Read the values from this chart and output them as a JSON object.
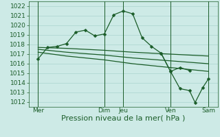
{
  "bg_color": "#cdeae6",
  "grid_color": "#aad4ce",
  "line_color": "#1a5c28",
  "xlabel": "Pression niveau de la mer( hPa )",
  "xlabel_fontsize": 8,
  "tick_fontsize": 6.5,
  "ylim": [
    1011.5,
    1022.5
  ],
  "yticks": [
    1012,
    1013,
    1014,
    1015,
    1016,
    1017,
    1018,
    1019,
    1020,
    1021,
    1022
  ],
  "xlim": [
    0,
    10.0
  ],
  "day_labels": [
    "Mer",
    "Dim",
    "Jeu",
    "Ven",
    "Sam"
  ],
  "day_positions": [
    0.5,
    4.0,
    5.0,
    7.5,
    9.5
  ],
  "vline_positions": [
    0.5,
    4.0,
    5.0,
    7.5,
    9.5
  ],
  "series1_x": [
    0.5,
    1.0,
    1.5,
    2.0,
    2.5,
    3.0,
    3.5,
    4.0,
    4.5,
    5.0,
    5.5,
    6.0,
    6.5,
    7.0,
    7.5,
    8.0,
    8.5
  ],
  "series1_y": [
    1016.5,
    1017.7,
    1017.8,
    1018.1,
    1019.3,
    1019.5,
    1018.9,
    1019.1,
    1021.1,
    1021.5,
    1021.2,
    1018.7,
    1017.8,
    1017.1,
    1015.2,
    1015.6,
    1015.3
  ],
  "series2_x": [
    0.5,
    2.0,
    4.0,
    5.5,
    7.5,
    9.5
  ],
  "series2_y": [
    1017.7,
    1017.6,
    1017.4,
    1017.2,
    1017.0,
    1016.8
  ],
  "series3_x": [
    0.5,
    2.0,
    4.0,
    5.5,
    7.5,
    9.5
  ],
  "series3_y": [
    1017.5,
    1017.2,
    1016.9,
    1016.6,
    1016.3,
    1016.0
  ],
  "series4_x": [
    0.5,
    2.0,
    4.0,
    5.5,
    7.5,
    9.5
  ],
  "series4_y": [
    1017.2,
    1016.8,
    1016.4,
    1016.0,
    1015.6,
    1015.2
  ],
  "series5_x": [
    7.0,
    7.5,
    8.0,
    8.5,
    8.8,
    9.2,
    9.5
  ],
  "series5_y": [
    1017.1,
    1015.2,
    1013.4,
    1013.2,
    1011.95,
    1013.5,
    1014.4
  ]
}
